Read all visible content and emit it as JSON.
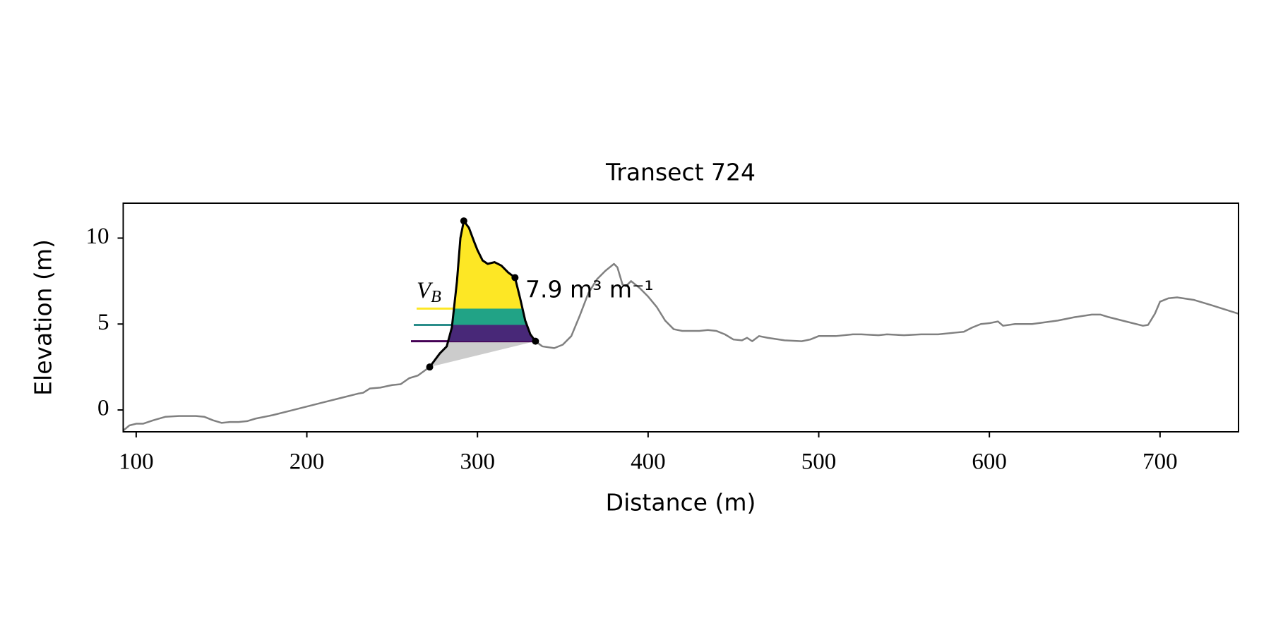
{
  "chart_data": {
    "type": "line",
    "title": "Transect 724",
    "xlabel": "Distance (m)",
    "ylabel": "Elevation (m)",
    "xlim": [
      92.4,
      746
    ],
    "ylim": [
      -1.27,
      12.03
    ],
    "xticks": [
      100,
      200,
      300,
      400,
      500,
      600,
      700
    ],
    "yticks": [
      0,
      5,
      10
    ],
    "series": [
      {
        "color": "#808080",
        "x": [
          92.4,
          96,
          100,
          104,
          110,
          117,
          125,
          135,
          140,
          145,
          150,
          155,
          160,
          165,
          170,
          180,
          190,
          200,
          210,
          220,
          230,
          233,
          237,
          243,
          250,
          255,
          260,
          265,
          272,
          278,
          282,
          285,
          288,
          290,
          292,
          295,
          298,
          300,
          303,
          306,
          310,
          314,
          318,
          322,
          325,
          328,
          331,
          334,
          338,
          345,
          350,
          355,
          360,
          365,
          370,
          375,
          380,
          382,
          385,
          387,
          390,
          395,
          400,
          405,
          410,
          415,
          420,
          430,
          435,
          440,
          445,
          450,
          455,
          458,
          461,
          465,
          470,
          480,
          490,
          495,
          500,
          510,
          520,
          525,
          535,
          540,
          550,
          560,
          570,
          580,
          585,
          590,
          595,
          600,
          605,
          608,
          615,
          625,
          640,
          650,
          660,
          665,
          670,
          680,
          690,
          693,
          697,
          700,
          705,
          710,
          720,
          730,
          746
        ],
        "values": [
          -1.2,
          -0.9,
          -0.8,
          -0.8,
          -0.6,
          -0.4,
          -0.35,
          -0.35,
          -0.4,
          -0.6,
          -0.75,
          -0.7,
          -0.7,
          -0.65,
          -0.5,
          -0.3,
          -0.05,
          0.2,
          0.45,
          0.7,
          0.95,
          1.0,
          1.25,
          1.3,
          1.45,
          1.5,
          1.85,
          2.0,
          2.5,
          3.3,
          3.7,
          4.8,
          7.5,
          10.0,
          11.0,
          10.6,
          9.8,
          9.3,
          8.7,
          8.5,
          8.6,
          8.4,
          8.0,
          7.7,
          6.5,
          5.2,
          4.4,
          4.0,
          3.7,
          3.6,
          3.8,
          4.3,
          5.5,
          6.8,
          7.6,
          8.1,
          8.5,
          8.3,
          7.3,
          7.2,
          7.5,
          7.1,
          6.6,
          6.0,
          5.2,
          4.7,
          4.6,
          4.6,
          4.65,
          4.6,
          4.4,
          4.1,
          4.05,
          4.2,
          4.0,
          4.3,
          4.2,
          4.05,
          4.0,
          4.1,
          4.3,
          4.3,
          4.4,
          4.4,
          4.35,
          4.4,
          4.35,
          4.4,
          4.4,
          4.5,
          4.55,
          4.8,
          5.0,
          5.05,
          5.15,
          4.9,
          5.0,
          5.0,
          5.2,
          5.4,
          5.55,
          5.55,
          5.4,
          5.15,
          4.9,
          4.95,
          5.6,
          6.3,
          6.5,
          6.55,
          6.4,
          6.1,
          5.6
        ]
      }
    ],
    "dune": {
      "color": "#000000",
      "x": [
        272,
        292,
        322,
        334
      ],
      "values": [
        2.5,
        11.0,
        7.7,
        4.0
      ]
    },
    "fill_color": "#cccccc",
    "band_edges": [
      4.0,
      4.95,
      5.9
    ],
    "band_colors": [
      "#482878",
      "#21a386",
      "#fde725"
    ],
    "line_colors": [
      "#440154",
      "#2a8d8a",
      "#fde725"
    ],
    "annotation": {
      "text": "V",
      "subscript": "B"
    },
    "volume_label": "7.9 m³ m⁻¹"
  }
}
